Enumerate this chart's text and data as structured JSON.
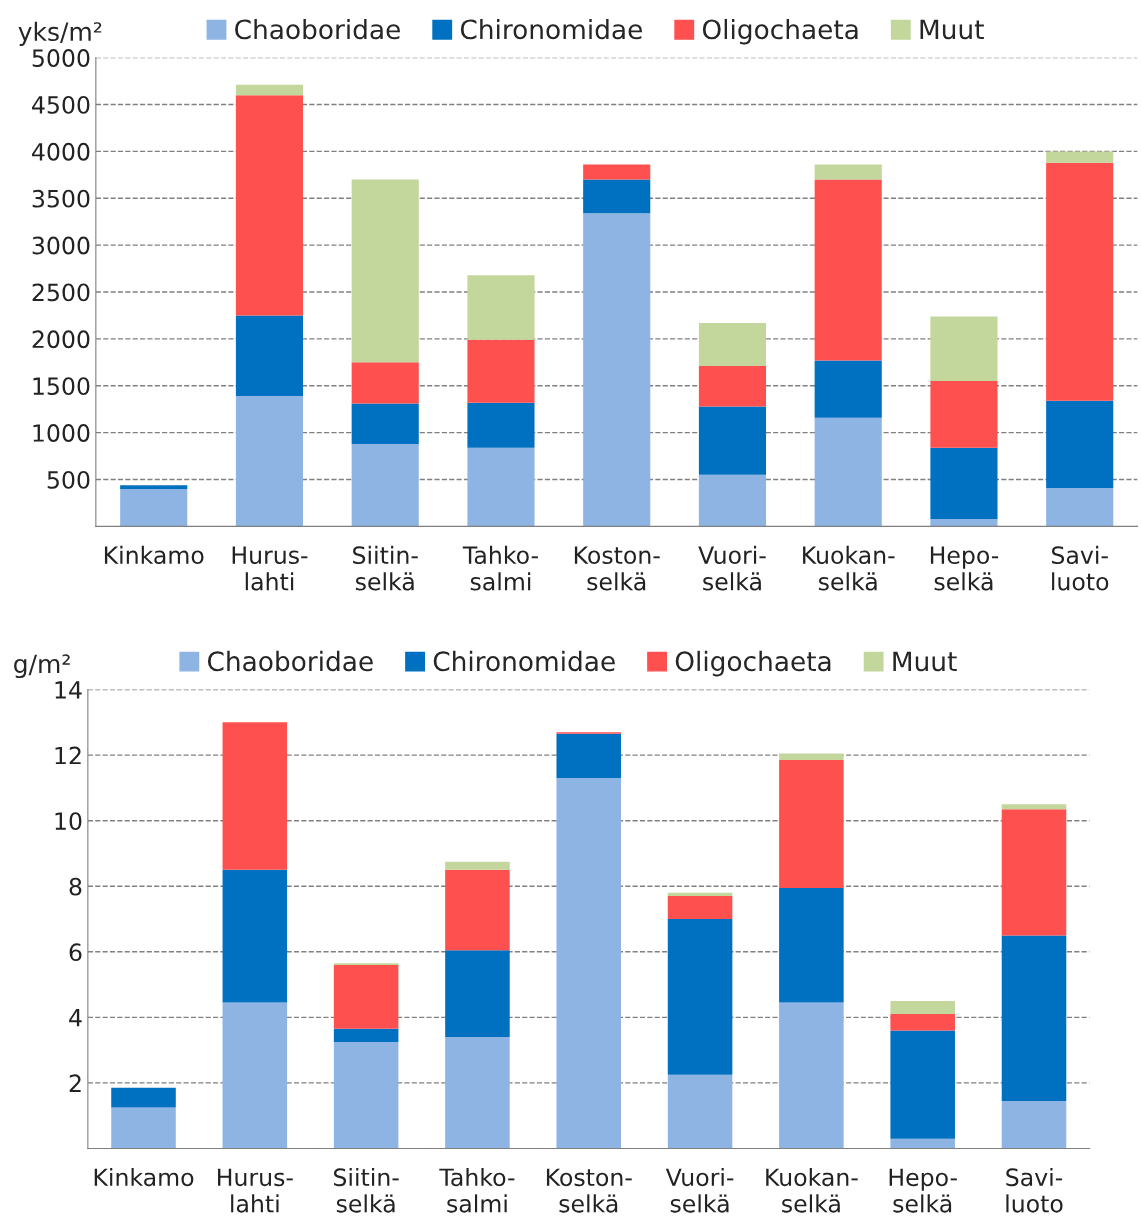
{
  "chart_data": [
    {
      "type": "bar",
      "stacked": true,
      "ylabel": "yks/m²",
      "categories": [
        "Kinkamo",
        "Hurus-\nlahti",
        "Siitin-\nselkä",
        "Tahko-\nsalmi",
        "Koston-\nselkä",
        "Vuori-\nselkä",
        "Kuokan-\nselkä",
        "Hepo-\nselkä",
        "Savi-\nluoto"
      ],
      "series": [
        {
          "name": "Chaoboridae",
          "color": "#8eb4e3",
          "values": [
            400,
            1390,
            880,
            840,
            3340,
            550,
            1160,
            80,
            410
          ]
        },
        {
          "name": "Chironomidae",
          "color": "#0070c0",
          "values": [
            40,
            860,
            430,
            480,
            360,
            730,
            610,
            760,
            930
          ]
        },
        {
          "name": "Oligochaeta",
          "color": "#ff5050",
          "values": [
            0,
            2350,
            440,
            670,
            160,
            430,
            1930,
            710,
            2540
          ]
        },
        {
          "name": "Muut",
          "color": "#c3d69b",
          "values": [
            0,
            110,
            1950,
            690,
            0,
            460,
            160,
            690,
            120
          ]
        }
      ],
      "ylim": [
        0,
        5000
      ],
      "yticks": [
        500,
        1000,
        1500,
        2000,
        2500,
        3000,
        3500,
        4000,
        4500,
        5000
      ],
      "grid": "y",
      "legend": "top"
    },
    {
      "type": "bar",
      "stacked": true,
      "ylabel": "g/m²",
      "categories": [
        "Kinkamo",
        "Hurus-\nlahti",
        "Siitin-\nselkä",
        "Tahko-\nsalmi",
        "Koston-\nselkä",
        "Vuori-\nselkä",
        "Kuokan-\nselkä",
        "Hepo-\nselkä",
        "Savi-\nluoto"
      ],
      "series": [
        {
          "name": "Chaoboridae",
          "color": "#8eb4e3",
          "values": [
            1.25,
            4.45,
            3.25,
            3.4,
            11.3,
            2.25,
            4.45,
            0.3,
            1.45
          ]
        },
        {
          "name": "Chironomidae",
          "color": "#0070c0",
          "values": [
            0.6,
            4.05,
            0.4,
            2.65,
            1.35,
            4.75,
            3.5,
            3.3,
            5.05
          ]
        },
        {
          "name": "Oligochaeta",
          "color": "#ff5050",
          "values": [
            0,
            4.5,
            1.95,
            2.45,
            0.05,
            0.7,
            3.9,
            0.5,
            3.85
          ]
        },
        {
          "name": "Muut",
          "color": "#c3d69b",
          "values": [
            0,
            0,
            0.05,
            0.25,
            0,
            0.1,
            0.2,
            0.4,
            0.15
          ]
        }
      ],
      "ylim": [
        0,
        14
      ],
      "yticks": [
        2,
        4,
        6,
        8,
        10,
        12,
        14
      ],
      "grid": "y",
      "legend": "top"
    }
  ]
}
